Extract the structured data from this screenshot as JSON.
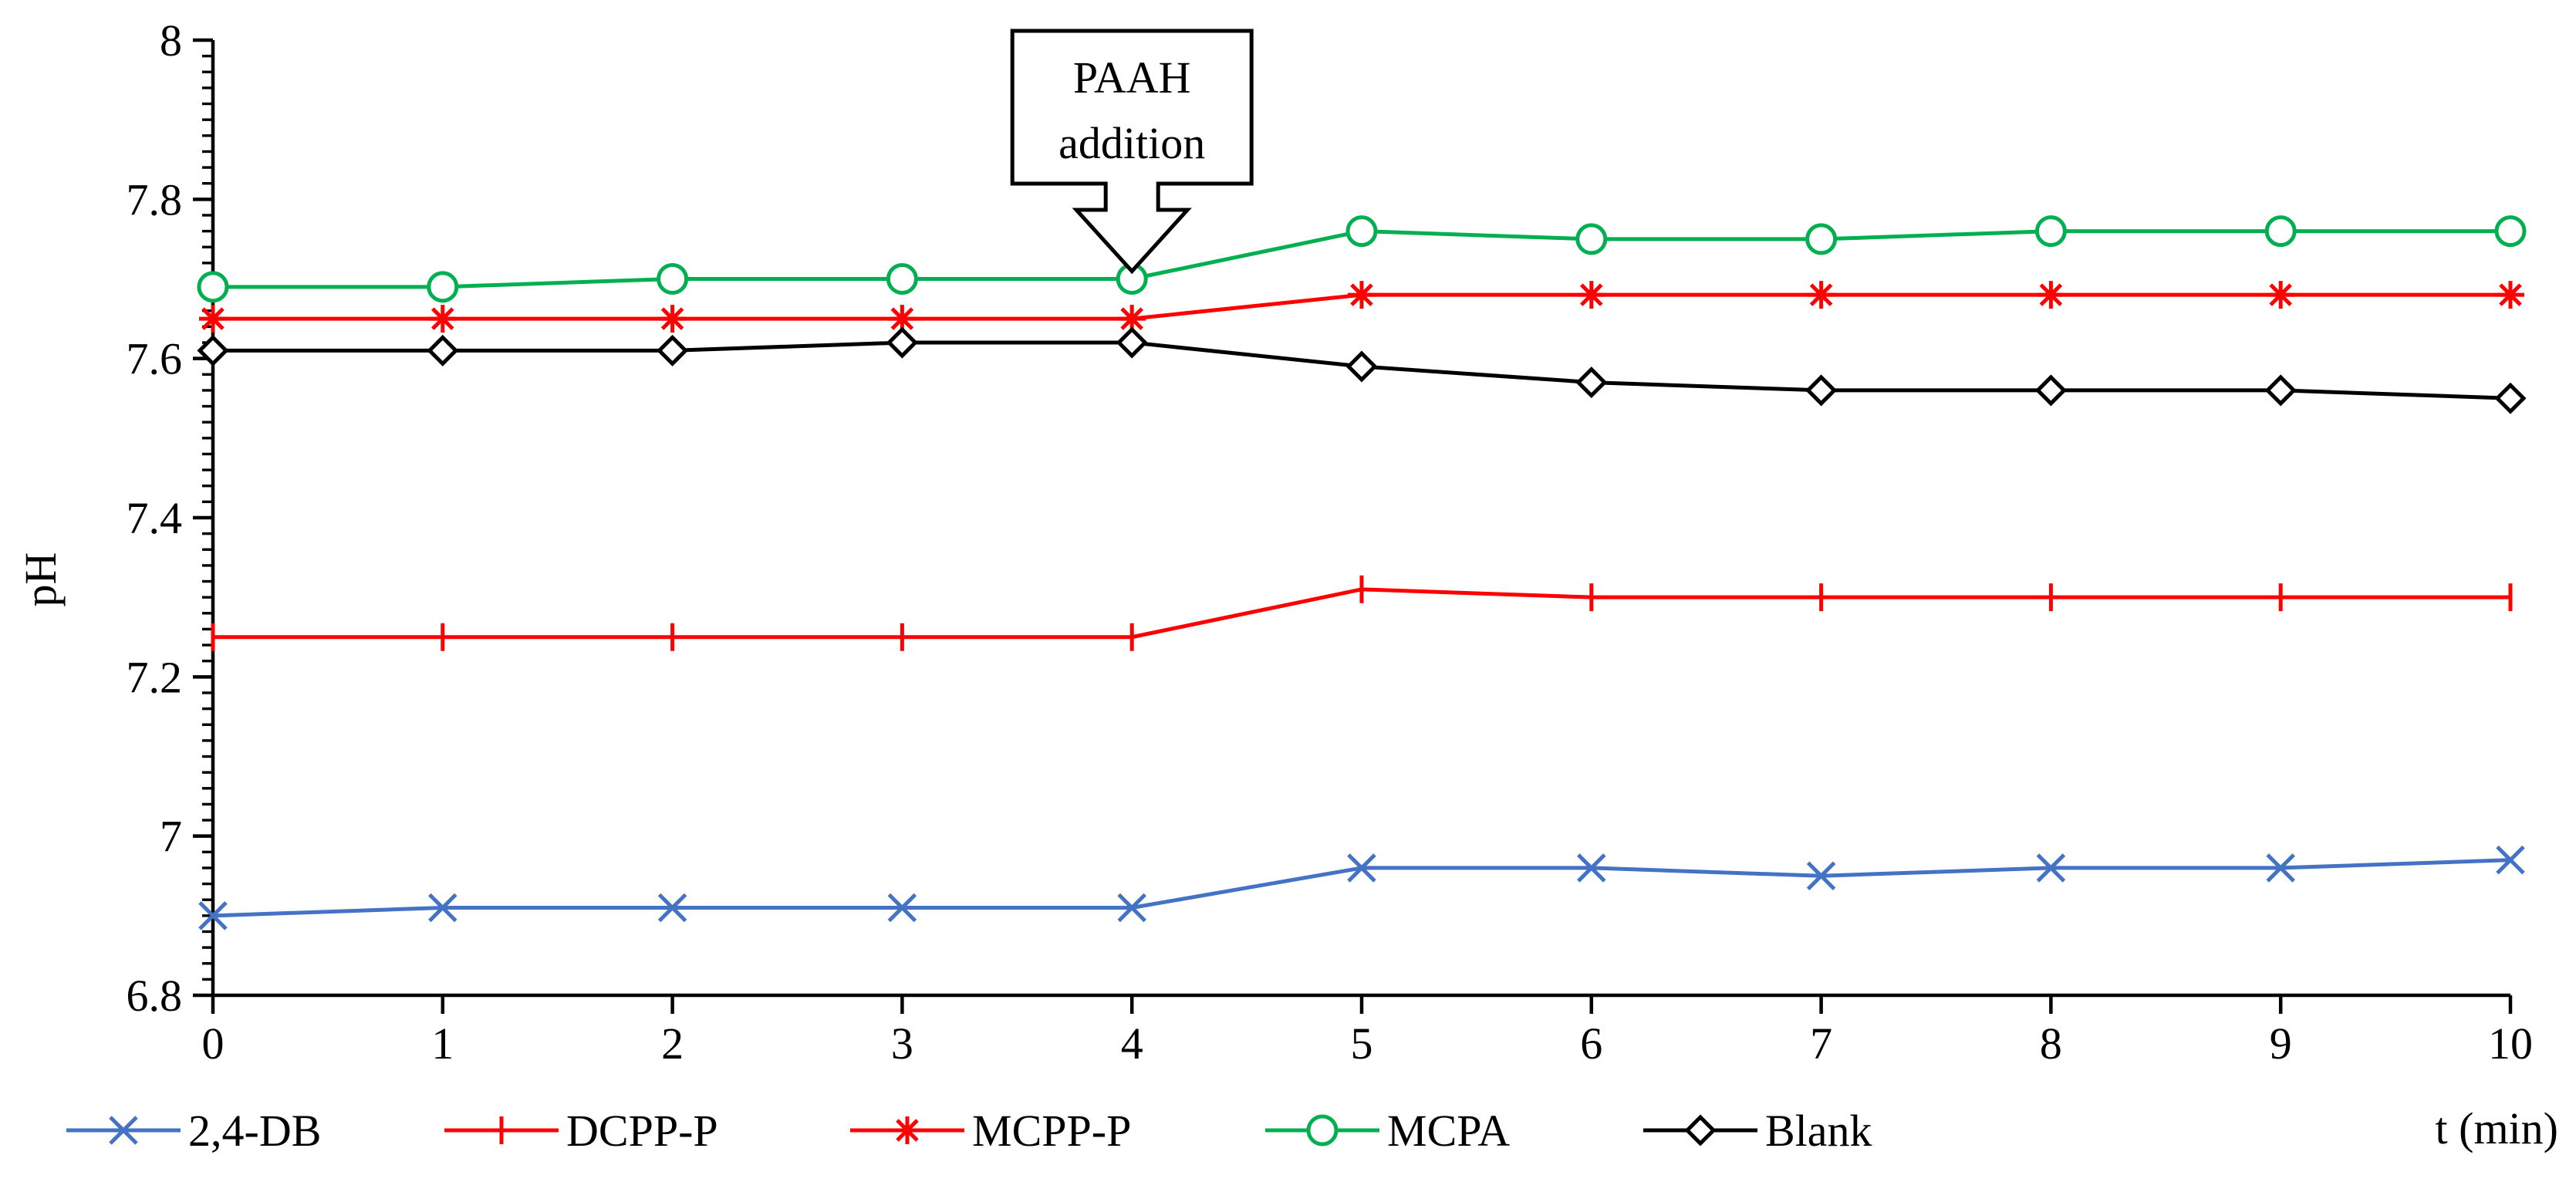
{
  "chart_data": {
    "type": "line",
    "title": "",
    "xlabel": "t (min)",
    "ylabel": "pH",
    "x": [
      0,
      1,
      2,
      3,
      4,
      5,
      6,
      7,
      8,
      9,
      10
    ],
    "xlim": [
      0,
      10
    ],
    "ylim": [
      6.8,
      8
    ],
    "yticks": [
      6.8,
      7,
      7.2,
      7.4,
      7.6,
      7.8,
      8
    ],
    "xtick_labels": [
      "0",
      "1",
      "2",
      "3",
      "4",
      "5",
      "6",
      "7",
      "8",
      "9",
      "10"
    ],
    "ytick_labels": [
      "6.8",
      "7",
      "7.2",
      "7.4",
      "7.6",
      "7.8",
      "8"
    ],
    "grid": false,
    "legend_position": "bottom",
    "series": [
      {
        "name": "2,4-DB",
        "color": "#4472C4",
        "marker": "x",
        "values": [
          6.9,
          6.91,
          6.91,
          6.91,
          6.91,
          6.96,
          6.96,
          6.95,
          6.96,
          6.96,
          6.97
        ]
      },
      {
        "name": "DCPP-P",
        "color": "#FF0000",
        "marker": "plus",
        "values": [
          7.25,
          7.25,
          7.25,
          7.25,
          7.25,
          7.31,
          7.3,
          7.3,
          7.3,
          7.3,
          7.3
        ]
      },
      {
        "name": "MCPP-P",
        "color": "#FF0000",
        "marker": "star",
        "values": [
          7.65,
          7.65,
          7.65,
          7.65,
          7.65,
          7.68,
          7.68,
          7.68,
          7.68,
          7.68,
          7.68
        ]
      },
      {
        "name": "MCPA",
        "color": "#00B050",
        "marker": "circle",
        "values": [
          7.69,
          7.69,
          7.7,
          7.7,
          7.7,
          7.76,
          7.75,
          7.75,
          7.76,
          7.76,
          7.76
        ]
      },
      {
        "name": "Blank",
        "color": "#000000",
        "marker": "diamond",
        "values": [
          7.61,
          7.61,
          7.61,
          7.62,
          7.62,
          7.59,
          7.57,
          7.56,
          7.56,
          7.56,
          7.55
        ]
      }
    ],
    "annotations": [
      {
        "line1": "PAAH",
        "line2": "addition",
        "at_x": 4
      }
    ]
  }
}
